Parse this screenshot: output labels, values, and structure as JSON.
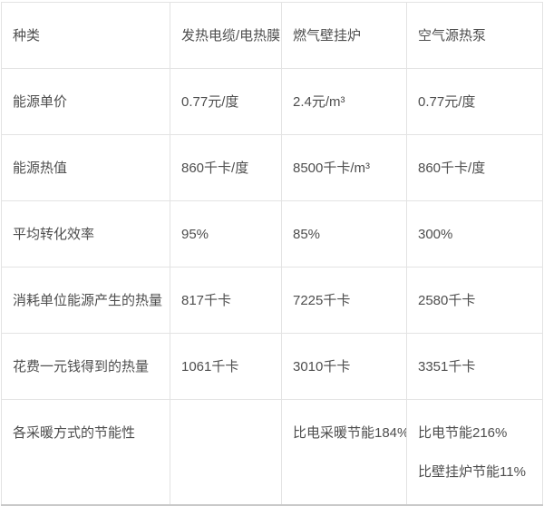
{
  "colors": {
    "text": "#4e4e4e",
    "grid_border": "#e3e3e3",
    "outer_bottom_border": "#c9c9c9",
    "background": "#ffffff"
  },
  "chart_data": {
    "type": "table",
    "title": "",
    "columns": [
      "种类",
      "发热电缆/电热膜",
      "燃气壁挂炉",
      "空气源热泵"
    ],
    "rows": [
      {
        "label": "能源单价",
        "values": [
          "0.77元/度",
          "2.4元/m³",
          "0.77元/度"
        ]
      },
      {
        "label": "能源热值",
        "values": [
          "860千卡/度",
          "8500千卡/m³",
          "860千卡/度"
        ]
      },
      {
        "label": "平均转化效率",
        "values": [
          "95%",
          "85%",
          "300%"
        ]
      },
      {
        "label": "消耗单位能源产生的热量",
        "values": [
          "817千卡",
          "7225千卡",
          "2580千卡"
        ]
      },
      {
        "label": "花费一元钱得到的热量",
        "values": [
          "1061千卡",
          "3010千卡",
          "3351千卡"
        ]
      },
      {
        "label": "各采暖方式的节能性",
        "values": [
          "",
          "比电采暖节能184%",
          ""
        ],
        "last_cell_lines": [
          "比电节能216%",
          "比壁挂炉节能11%"
        ]
      }
    ]
  }
}
